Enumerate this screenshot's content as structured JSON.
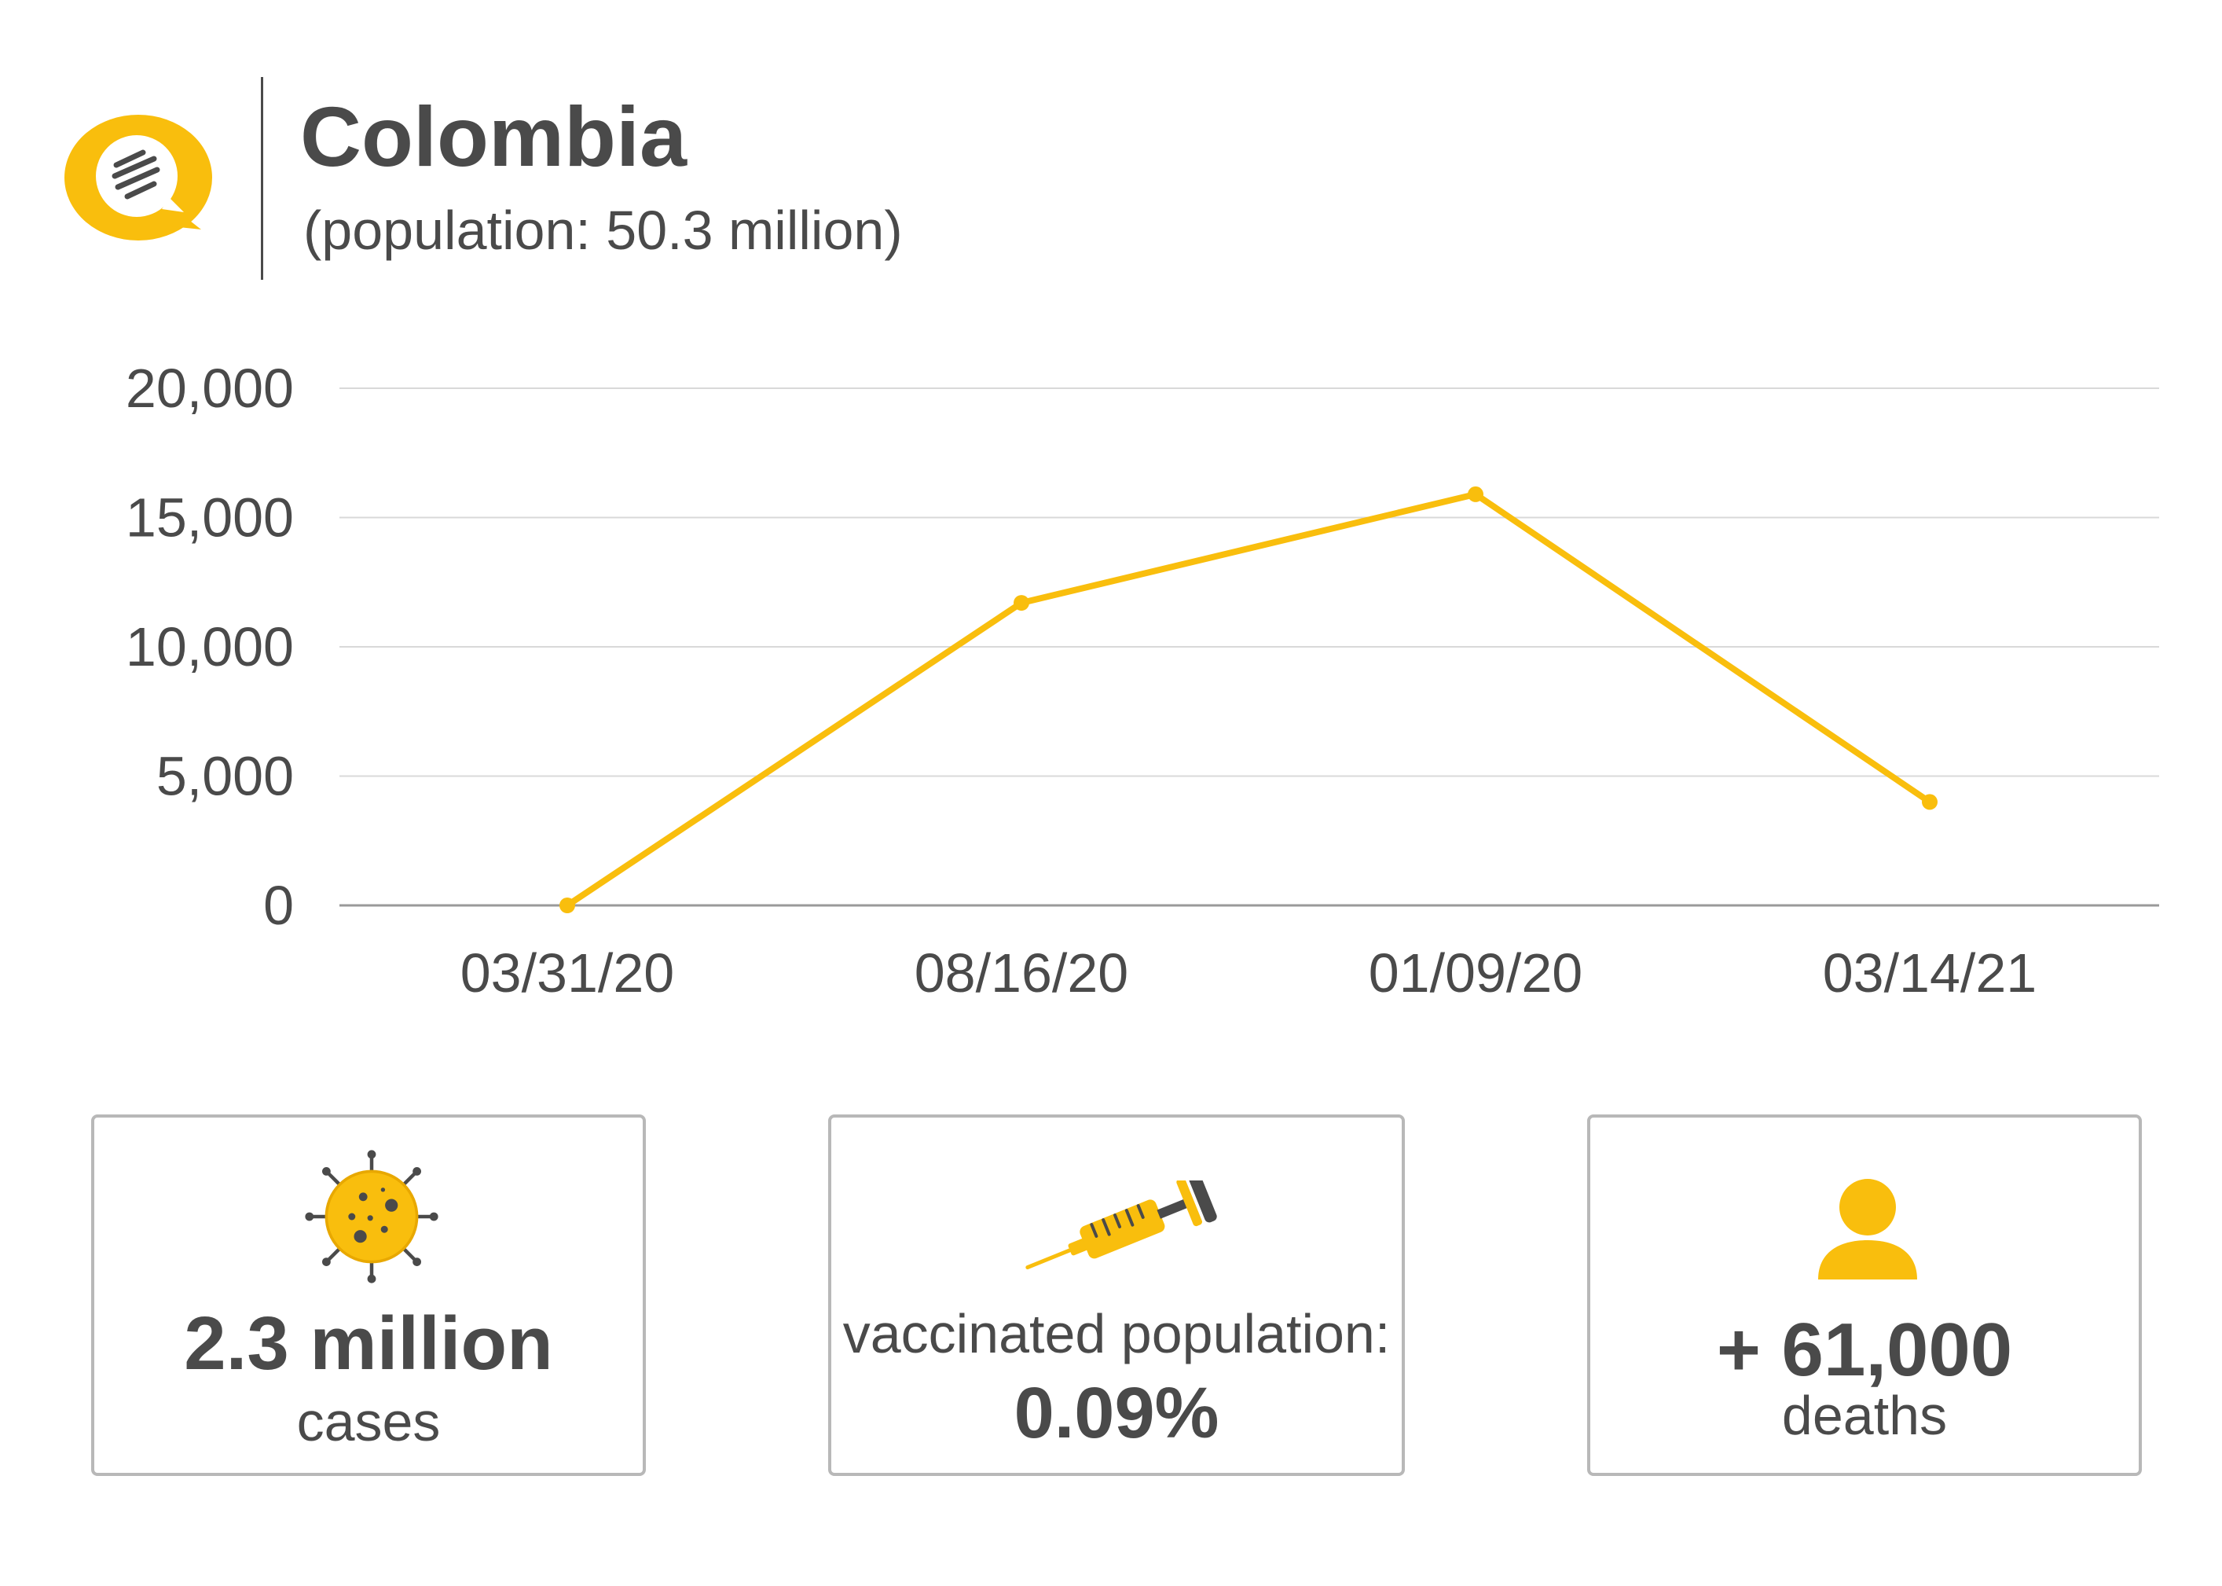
{
  "header": {
    "country": "Colombia",
    "population": "(population: 50.3 million)"
  },
  "colors": {
    "accent": "#F9BE0D",
    "text": "#4a4a4a",
    "grid": "#d9d9d9",
    "border": "#b8b8b8"
  },
  "chart_data": {
    "type": "line",
    "title": "",
    "xlabel": "",
    "ylabel": "",
    "categories": [
      "03/31/20",
      "08/16/20",
      "01/09/20",
      "03/14/21"
    ],
    "series": [
      {
        "values": [
          0,
          11700,
          15900,
          4000
        ]
      }
    ],
    "ylim": [
      0,
      20000
    ],
    "yticks": [
      "0",
      "5,000",
      "10,000",
      "15,000",
      "20,000"
    ],
    "grid": true
  },
  "cards": {
    "cases": {
      "value": "2.3 million",
      "label": "cases",
      "icon": "virus-icon"
    },
    "vaccinated": {
      "label": "vaccinated population:",
      "value": "0.09%",
      "icon": "syringe-icon"
    },
    "deaths": {
      "value": "+ 61,000",
      "label": "deaths",
      "icon": "person-icon"
    }
  }
}
